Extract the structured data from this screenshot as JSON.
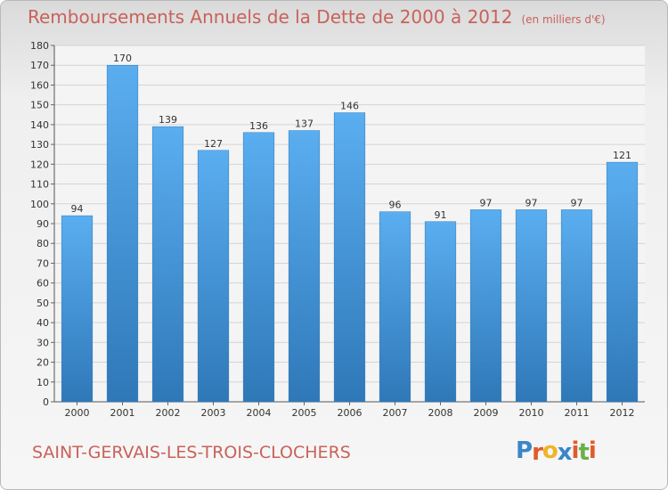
{
  "chart_data": {
    "type": "bar",
    "title": "Remboursements Annuels de la Dette de 2000 à 2012",
    "subtitle": "(en milliers d'€)",
    "categories": [
      "2000",
      "2001",
      "2002",
      "2003",
      "2004",
      "2005",
      "2006",
      "2007",
      "2008",
      "2009",
      "2010",
      "2011",
      "2012"
    ],
    "values": [
      94,
      170,
      139,
      127,
      136,
      137,
      146,
      96,
      91,
      97,
      97,
      97,
      121
    ],
    "ylim": [
      0,
      180
    ],
    "yticks": [
      0,
      10,
      20,
      30,
      40,
      50,
      60,
      70,
      80,
      90,
      100,
      110,
      120,
      130,
      140,
      150,
      160,
      170,
      180
    ],
    "grid": true,
    "bar_color": "#4a9ee0"
  },
  "commune": "SAINT-GERVAIS-LES-TROIS-CLOCHERS",
  "logo": {
    "letters": [
      "P",
      "r",
      "o",
      "x",
      "i",
      "t",
      "i"
    ],
    "colors": [
      "#3a86c8",
      "#e05a2a",
      "#f0b428",
      "#3a86c8",
      "#e05a2a",
      "#6ab04c",
      "#e05a2a"
    ]
  }
}
